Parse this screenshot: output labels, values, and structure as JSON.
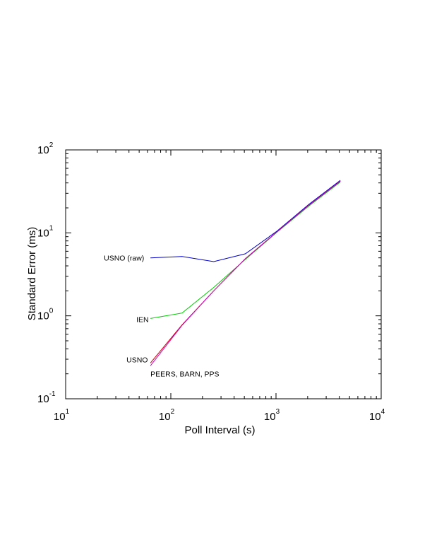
{
  "chart_data": {
    "type": "line",
    "xlabel": "Poll Interval (s)",
    "ylabel": "Standard Error (ms)",
    "xscale": "log",
    "yscale": "log",
    "xlim": [
      10,
      10000
    ],
    "ylim": [
      0.1,
      100
    ],
    "x_ticks": [
      {
        "base": "10",
        "exp": "1"
      },
      {
        "base": "10",
        "exp": "2"
      },
      {
        "base": "10",
        "exp": "3"
      },
      {
        "base": "10",
        "exp": "4"
      }
    ],
    "y_ticks": [
      {
        "base": "10",
        "exp": "-1"
      },
      {
        "base": "10",
        "exp": "0"
      },
      {
        "base": "10",
        "exp": "1"
      },
      {
        "base": "10",
        "exp": "2"
      }
    ],
    "grid": false,
    "legend": "inline labels at series start",
    "series": [
      {
        "name": "USNO (raw)",
        "color": "#0000cc",
        "x": [
          64,
          128,
          256,
          512,
          1024,
          2048,
          4096
        ],
        "y": [
          5.0,
          5.2,
          4.5,
          5.6,
          10.5,
          22,
          43
        ]
      },
      {
        "name": "IEN",
        "color": "#00cc00",
        "x": [
          64,
          128,
          256,
          512,
          1024,
          2048,
          4096
        ],
        "y": [
          0.93,
          1.08,
          2.2,
          4.8,
          10.2,
          21,
          41
        ]
      },
      {
        "name": "USNO",
        "color": "#cc0000",
        "x": [
          64,
          128,
          256,
          512,
          1024,
          2048,
          4096
        ],
        "y": [
          0.27,
          0.78,
          2.0,
          4.9,
          10.3,
          21.5,
          42
        ]
      },
      {
        "name": "PEERS, BARN, PPS",
        "color": "#cc00cc",
        "x": [
          64,
          128,
          256,
          512,
          1024,
          2048,
          4096
        ],
        "y": [
          0.25,
          0.77,
          2.0,
          4.9,
          10.3,
          21.5,
          42
        ]
      }
    ]
  }
}
